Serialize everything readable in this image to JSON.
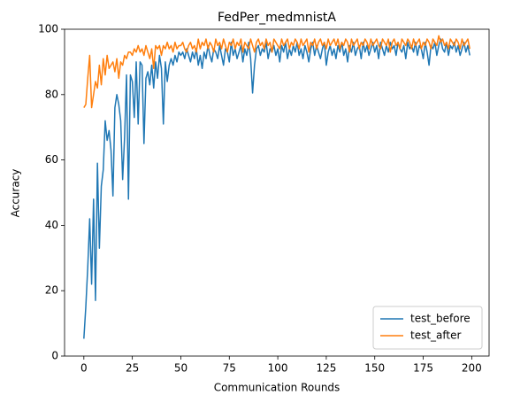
{
  "chart_data": {
    "type": "line",
    "title": "FedPer_medmnistA",
    "xlabel": "Communication Rounds",
    "ylabel": "Accuracy",
    "xlim": [
      -9.95,
      208.95
    ],
    "ylim": [
      0,
      100
    ],
    "xticks": [
      0,
      25,
      50,
      75,
      100,
      125,
      150,
      175,
      200
    ],
    "yticks": [
      0,
      20,
      40,
      60,
      80,
      100
    ],
    "legend": "lower right",
    "grid": false,
    "x": [
      0,
      1,
      2,
      3,
      4,
      5,
      6,
      7,
      8,
      9,
      10,
      11,
      12,
      13,
      14,
      15,
      16,
      17,
      18,
      19,
      20,
      21,
      22,
      23,
      24,
      25,
      26,
      27,
      28,
      29,
      30,
      31,
      32,
      33,
      34,
      35,
      36,
      37,
      38,
      39,
      40,
      41,
      42,
      43,
      44,
      45,
      46,
      47,
      48,
      49,
      50,
      51,
      52,
      53,
      54,
      55,
      56,
      57,
      58,
      59,
      60,
      61,
      62,
      63,
      64,
      65,
      66,
      67,
      68,
      69,
      70,
      71,
      72,
      73,
      74,
      75,
      76,
      77,
      78,
      79,
      80,
      81,
      82,
      83,
      84,
      85,
      86,
      87,
      88,
      89,
      90,
      91,
      92,
      93,
      94,
      95,
      96,
      97,
      98,
      99,
      100,
      101,
      102,
      103,
      104,
      105,
      106,
      107,
      108,
      109,
      110,
      111,
      112,
      113,
      114,
      115,
      116,
      117,
      118,
      119,
      120,
      121,
      122,
      123,
      124,
      125,
      126,
      127,
      128,
      129,
      130,
      131,
      132,
      133,
      134,
      135,
      136,
      137,
      138,
      139,
      140,
      141,
      142,
      143,
      144,
      145,
      146,
      147,
      148,
      149,
      150,
      151,
      152,
      153,
      154,
      155,
      156,
      157,
      158,
      159,
      160,
      161,
      162,
      163,
      164,
      165,
      166,
      167,
      168,
      169,
      170,
      171,
      172,
      173,
      174,
      175,
      176,
      177,
      178,
      179,
      180,
      181,
      182,
      183,
      184,
      185,
      186,
      187,
      188,
      189,
      190,
      191,
      192,
      193,
      194,
      195,
      196,
      197,
      198,
      199
    ],
    "series": [
      {
        "name": "test_before",
        "color": "#1f77b4",
        "values": [
          5.3,
          15,
          27,
          42,
          22,
          48,
          17,
          59,
          33,
          52,
          57,
          72,
          66,
          69,
          63,
          49,
          76,
          80,
          77,
          72,
          54,
          67,
          86,
          48,
          86,
          84,
          73,
          90,
          71,
          90,
          89,
          65,
          85,
          87,
          83,
          89,
          82,
          90,
          85,
          92,
          88,
          71,
          90,
          84,
          89,
          91,
          89,
          92,
          90,
          93,
          92,
          93,
          91,
          94,
          92,
          90,
          93,
          91,
          94,
          89,
          92,
          88,
          93,
          91,
          95,
          92,
          90,
          94,
          93,
          91,
          95,
          92,
          89,
          94,
          93,
          90,
          96,
          92,
          94,
          91,
          93,
          95,
          90,
          94,
          92,
          96,
          91,
          80.5,
          89,
          94,
          95,
          92,
          94,
          93,
          96,
          91,
          94,
          93,
          95,
          92,
          94,
          90,
          95,
          93,
          96,
          91,
          94,
          92,
          95,
          93,
          96,
          92,
          94,
          91,
          95,
          93,
          90,
          94,
          96,
          92,
          95,
          93,
          91,
          94,
          96,
          89,
          93,
          95,
          92,
          94,
          91,
          95,
          93,
          96,
          92,
          94,
          90,
          95,
          93,
          96,
          92,
          94,
          95,
          91,
          96,
          93,
          95,
          92,
          94,
          96,
          93,
          95,
          91,
          96,
          94,
          92,
          95,
          93,
          96,
          94,
          95,
          92,
          96,
          94,
          93,
          95,
          91,
          96,
          94,
          95,
          93,
          96,
          92,
          95,
          94,
          91,
          96,
          93,
          89,
          95,
          94,
          96,
          92,
          95,
          97,
          94,
          93,
          96,
          92,
          95,
          94,
          96,
          93,
          95,
          92,
          94,
          96,
          93,
          95,
          92
        ]
      },
      {
        "name": "test_after",
        "color": "#ff7f0e",
        "values": [
          76,
          77,
          85,
          92,
          76,
          80,
          84,
          82,
          89,
          83,
          91,
          86,
          92,
          88,
          89,
          90,
          87,
          91,
          85,
          90,
          89,
          92,
          91,
          93,
          93,
          92,
          94,
          93,
          95,
          93,
          94,
          92,
          95,
          93,
          91,
          94,
          88,
          95,
          94,
          95,
          92,
          95,
          94,
          96,
          94,
          95,
          93,
          96,
          94,
          95,
          95,
          96,
          94,
          93,
          95,
          96,
          94,
          95,
          93,
          97,
          94,
          96,
          95,
          97,
          94,
          96,
          95,
          93,
          97,
          95,
          96,
          94,
          97,
          95,
          93,
          96,
          95,
          97,
          94,
          96,
          95,
          97,
          93,
          96,
          95,
          94,
          97,
          95,
          93,
          96,
          97,
          95,
          96,
          94,
          97,
          95,
          96,
          93,
          97,
          96,
          95,
          94,
          97,
          95,
          96,
          97,
          94,
          96,
          95,
          97,
          96,
          94,
          97,
          95,
          96,
          97,
          93,
          96,
          95,
          97,
          94,
          96,
          97,
          95,
          96,
          94,
          97,
          95,
          96,
          97,
          95,
          97,
          94,
          96,
          95,
          97,
          96,
          93,
          97,
          95,
          96,
          97,
          94,
          96,
          95,
          97,
          96,
          94,
          97,
          95,
          96,
          97,
          95,
          94,
          97,
          96,
          95,
          97,
          93,
          96,
          97,
          95,
          96,
          94,
          97,
          96,
          95,
          97,
          96,
          94,
          97,
          95,
          96,
          97,
          94,
          96,
          95,
          97,
          96,
          94,
          97,
          96,
          95,
          98,
          96,
          97,
          95,
          96,
          94,
          97,
          96,
          95,
          97,
          96,
          94,
          97,
          95,
          96,
          97,
          94
        ]
      }
    ]
  }
}
